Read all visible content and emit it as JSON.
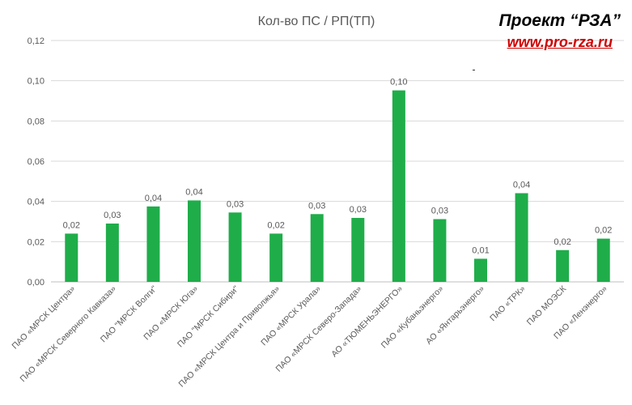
{
  "brand": {
    "title": "Проект “РЗА”",
    "url": "www.pro-rza.ru",
    "url_color": "#d00000"
  },
  "colors": {
    "bar": "#1fad4a",
    "grid": "#d9d9d9",
    "text": "#595959"
  },
  "chart_data": {
    "type": "bar",
    "title": "Кол-во ПС / РП(ТП)",
    "xlabel": "",
    "ylabel": "",
    "ylim": [
      0,
      0.12
    ],
    "yticks": [
      "0,00",
      "0,02",
      "0,04",
      "0,06",
      "0,08",
      "0,10",
      "0,12"
    ],
    "ytick_values": [
      0,
      0.02,
      0.04,
      0.06,
      0.08,
      0.1,
      0.12
    ],
    "grid": true,
    "categories": [
      "ПАО «МРСК Центра»",
      "ПАО «МРСК Северного Кавказа»",
      "ПАО \"МРСК Волги\"",
      "ПАО «МРСК Юга»",
      "ПАО \"МРСК Сибири\"",
      "ПАО «МРСК Центра и Приволжья»",
      "ПАО «МРСК Урала»",
      "ПАО «МРСК Северо-Запада»",
      "АО «ТЮМЕНЬЭНЕРГО»",
      "ПАО «Кубаньэнерго»",
      "АО «Янтарьэнерго»",
      "ПАО «ТРК»",
      "ПАО МОЭСК",
      "ПАО «Ленэнерго»"
    ],
    "values": [
      0.024,
      0.029,
      0.0375,
      0.0405,
      0.0345,
      0.024,
      0.0337,
      0.0318,
      0.0952,
      0.0312,
      0.0115,
      0.0441,
      0.0158,
      0.0215
    ],
    "data_labels": [
      "0,02",
      "0,03",
      "0,04",
      "0,04",
      "0,03",
      "0,02",
      "0,03",
      "0,03",
      "0,10",
      "0,03",
      "0,01",
      "0,04",
      "0,02",
      "0,02"
    ]
  }
}
